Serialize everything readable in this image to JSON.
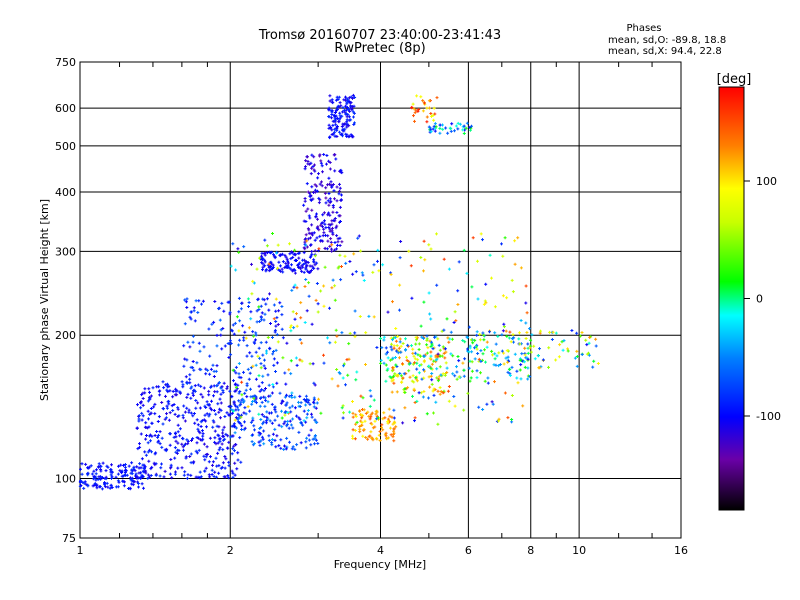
{
  "chart_data": {
    "type": "scatter",
    "title": "Tromsø 20160707 23:40:00-23:41:43",
    "subtitle": "RwPretec (8p)",
    "xlabel": "Frequency [MHz]",
    "ylabel": "Stationary phase Virtual Height [km]",
    "x_scale": "log",
    "y_scale": "log",
    "xlim": [
      1,
      16
    ],
    "ylim": [
      75,
      750
    ],
    "x_ticks": [
      1,
      2,
      4,
      6,
      8,
      10,
      16
    ],
    "y_ticks": [
      75,
      100,
      200,
      300,
      400,
      500,
      600,
      750
    ],
    "grid": true,
    "stats": {
      "heading": "Phases",
      "line_o": "mean, sd,O: -89.8, 18.8",
      "line_x": "mean, sd,X:  94.4, 22.8"
    },
    "colorbar": {
      "label": "[deg]",
      "ticks": [
        "100",
        "0",
        "-100"
      ],
      "tick_values": [
        100,
        0,
        -100
      ],
      "range": [
        -180,
        180
      ]
    },
    "clusters": [
      {
        "x": [
          1.0,
          1.35
        ],
        "y": [
          95,
          108
        ],
        "phase": [
          -110,
          -80
        ],
        "n": 160
      },
      {
        "x": [
          1.3,
          2.1
        ],
        "y": [
          100,
          160
        ],
        "phase": [
          -115,
          -80
        ],
        "n": 420
      },
      {
        "x": [
          1.6,
          2.6
        ],
        "y": [
          150,
          240
        ],
        "phase": [
          -110,
          -60
        ],
        "n": 200
      },
      {
        "x": [
          2.0,
          3.0
        ],
        "y": [
          115,
          150
        ],
        "phase": [
          -110,
          -40
        ],
        "n": 200
      },
      {
        "x": [
          2.3,
          3.0
        ],
        "y": [
          270,
          300
        ],
        "phase": [
          -115,
          -90
        ],
        "n": 130
      },
      {
        "x": [
          2.8,
          3.35
        ],
        "y": [
          300,
          480
        ],
        "phase": [
          -130,
          -95
        ],
        "n": 200
      },
      {
        "x": [
          3.15,
          3.55
        ],
        "y": [
          520,
          640
        ],
        "phase": [
          -115,
          -80
        ],
        "n": 140
      },
      {
        "x": [
          3.5,
          4.3
        ],
        "y": [
          120,
          140
        ],
        "phase": [
          90,
          150
        ],
        "n": 90
      },
      {
        "x": [
          4.2,
          5.5
        ],
        "y": [
          150,
          200
        ],
        "phase": [
          40,
          150
        ],
        "n": 120
      },
      {
        "x": [
          4.6,
          5.2
        ],
        "y": [
          560,
          640
        ],
        "phase": [
          80,
          170
        ],
        "n": 30
      },
      {
        "x": [
          5.0,
          6.1
        ],
        "y": [
          530,
          560
        ],
        "phase": [
          -100,
          20
        ],
        "n": 40
      },
      {
        "x": [
          4.0,
          8.0
        ],
        "y": [
          160,
          200
        ],
        "phase": [
          -80,
          40
        ],
        "n": 160
      },
      {
        "x": [
          6.0,
          11.0
        ],
        "y": [
          170,
          205
        ],
        "phase": [
          -100,
          130
        ],
        "n": 100
      },
      {
        "x": [
          2.0,
          8.0
        ],
        "y": [
          130,
          330
        ],
        "phase": [
          -120,
          160
        ],
        "n": 360
      }
    ]
  }
}
